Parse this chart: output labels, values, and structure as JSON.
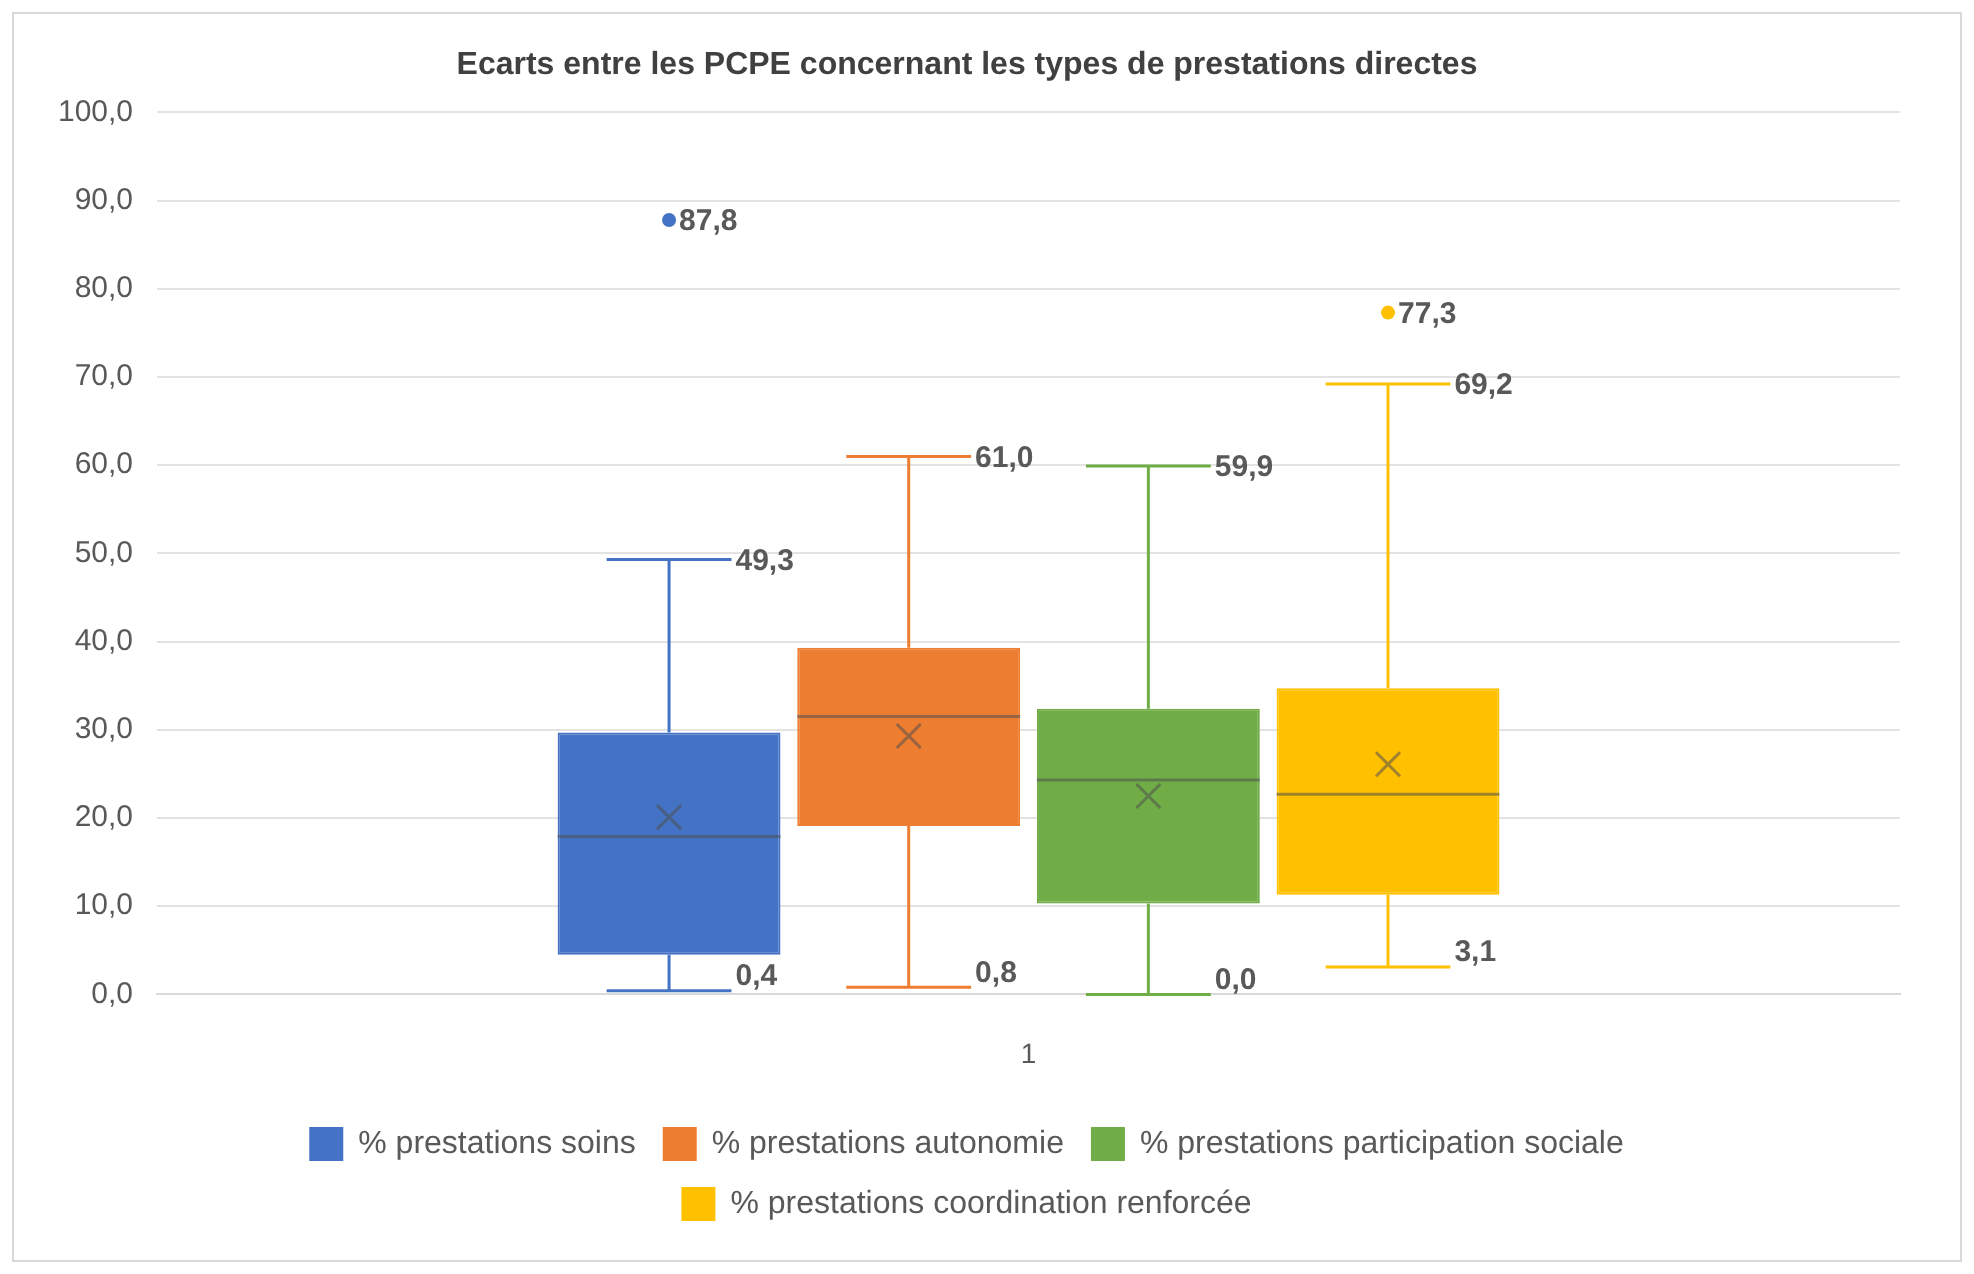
{
  "chart_data": {
    "type": "box",
    "title": "Ecarts entre les PCPE concernant les types de prestations directes",
    "categories": [
      "1"
    ],
    "series": [
      {
        "name": "% prestations soins",
        "color": "#4472c4",
        "boxes": [
          {
            "low": 0.4,
            "q1": 4.5,
            "median": 17.9,
            "q3": 29.7,
            "high": 49.3,
            "mean": 20.1,
            "outliers": [
              87.8
            ]
          }
        ]
      },
      {
        "name": "% prestations autonomie",
        "color": "#ed7d31",
        "boxes": [
          {
            "low": 0.8,
            "q1": 19.1,
            "median": 31.5,
            "q3": 39.3,
            "high": 61.0,
            "mean": 29.3
          }
        ]
      },
      {
        "name": "% prestations participation sociale",
        "color": "#70ad47",
        "boxes": [
          {
            "low": 0.0,
            "q1": 10.3,
            "median": 24.3,
            "q3": 32.4,
            "high": 59.9,
            "mean": 22.5
          }
        ]
      },
      {
        "name": "% prestations coordination renforcée",
        "color": "#ffc000",
        "boxes": [
          {
            "low": 3.1,
            "q1": 11.3,
            "median": 22.7,
            "q3": 34.7,
            "high": 69.2,
            "mean": 26.1,
            "outliers": [
              77.3
            ]
          }
        ]
      }
    ],
    "ylim": [
      0,
      100
    ],
    "yticks": [
      {
        "value": 0,
        "label": "0,0"
      },
      {
        "value": 10,
        "label": "10,0"
      },
      {
        "value": 20,
        "label": "20,0"
      },
      {
        "value": 30,
        "label": "30,0"
      },
      {
        "value": 40,
        "label": "40,0"
      },
      {
        "value": 50,
        "label": "50,0"
      },
      {
        "value": 60,
        "label": "60,0"
      },
      {
        "value": 70,
        "label": "70,0"
      },
      {
        "value": 80,
        "label": "80,0"
      },
      {
        "value": 90,
        "label": "90,0"
      },
      {
        "value": 100,
        "label": "100,0"
      }
    ],
    "grid": "y",
    "legend": "bottom",
    "annotations": [
      "87,8",
      "49,3",
      "0,4",
      "61,0",
      "0,8",
      "59,9",
      "0,0",
      "77,3",
      "69,2",
      "3,1"
    ]
  }
}
